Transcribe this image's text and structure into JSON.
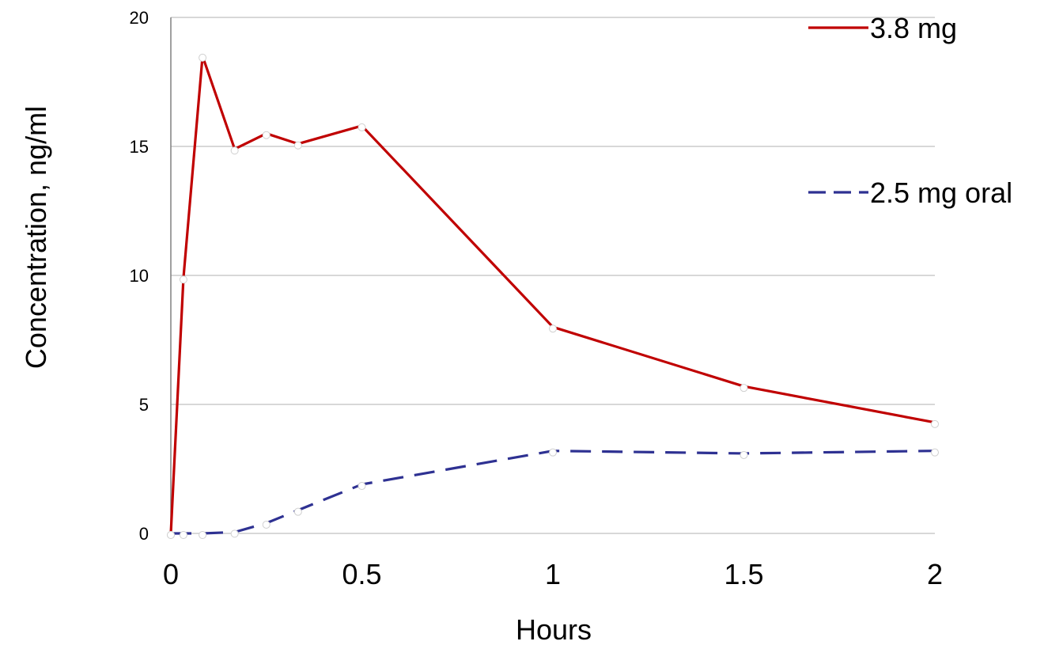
{
  "chart_data": {
    "type": "line",
    "title": "",
    "xlabel": "Hours",
    "ylabel": "Concentration, ng/ml",
    "xlim": [
      0,
      2
    ],
    "ylim": [
      0,
      20
    ],
    "x_ticks": [
      "0",
      "0.5",
      "1",
      "1.5",
      "2"
    ],
    "x_tick_values": [
      0,
      0.5,
      1,
      1.5,
      2
    ],
    "y_ticks": [
      "0",
      "5",
      "10",
      "15",
      "20"
    ],
    "y_tick_values": [
      0,
      5,
      10,
      15,
      20
    ],
    "grid": "horizontal",
    "legend_position": "top-right",
    "series": [
      {
        "name": "3.8 mg",
        "color": "#c00000",
        "dash": "solid",
        "x": [
          0,
          0.033,
          0.083,
          0.167,
          0.25,
          0.333,
          0.5,
          1,
          1.5,
          2
        ],
        "y": [
          0,
          9.9,
          18.5,
          14.9,
          15.5,
          15.1,
          15.8,
          8.0,
          5.7,
          4.3
        ]
      },
      {
        "name": "2.5 mg oral",
        "color": "#2e3192",
        "dash": "dashed",
        "x": [
          0,
          0.033,
          0.083,
          0.167,
          0.25,
          0.333,
          0.5,
          1,
          1.5,
          2
        ],
        "y": [
          0,
          0,
          0,
          0.05,
          0.4,
          0.9,
          1.9,
          3.2,
          3.1,
          3.2
        ]
      }
    ]
  }
}
